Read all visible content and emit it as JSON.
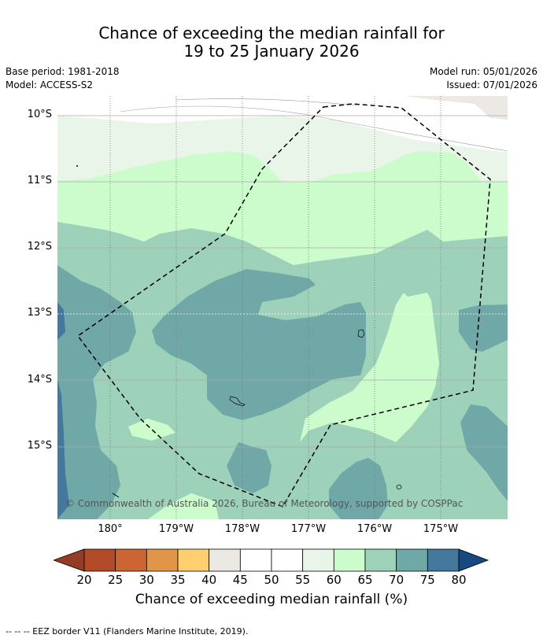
{
  "title": {
    "line1": "Chance of exceeding the median rainfall for",
    "line2": "19 to 25 January 2026"
  },
  "meta": {
    "base_period": "Base period: 1981-2018",
    "model": "Model: ACCESS-S2",
    "model_run": "Model run: 05/01/2026",
    "issued": "Issued: 07/01/2026"
  },
  "map": {
    "lat_labels": [
      "10°S",
      "11°S",
      "12°S",
      "13°S",
      "14°S",
      "15°S"
    ],
    "lon_labels": [
      "180°",
      "179°W",
      "178°W",
      "177°W",
      "176°W",
      "175°W"
    ],
    "copyright": "© Commonwealth of Australia 2026, Bureau of Meteorology, supported by COSPPac"
  },
  "colorbar": {
    "ticks": [
      "20",
      "25",
      "30",
      "35",
      "40",
      "45",
      "50",
      "55",
      "60",
      "65",
      "70",
      "75",
      "80"
    ],
    "colors": [
      "#b34a28",
      "#cd6533",
      "#e19549",
      "#fdcf6e",
      "#ece9e4",
      "#ffffff",
      "#ffffff",
      "#eaf5ea",
      "#ccfccc",
      "#9ed1b9",
      "#70a7a7",
      "#44789c"
    ],
    "under_color": "#963c26",
    "over_color": "#17487f",
    "label": "Chance of exceeding median rainfall (%)"
  },
  "footer": "--  --  -- EEZ border V11 (Flanders Marine Institute, 2019)."
}
